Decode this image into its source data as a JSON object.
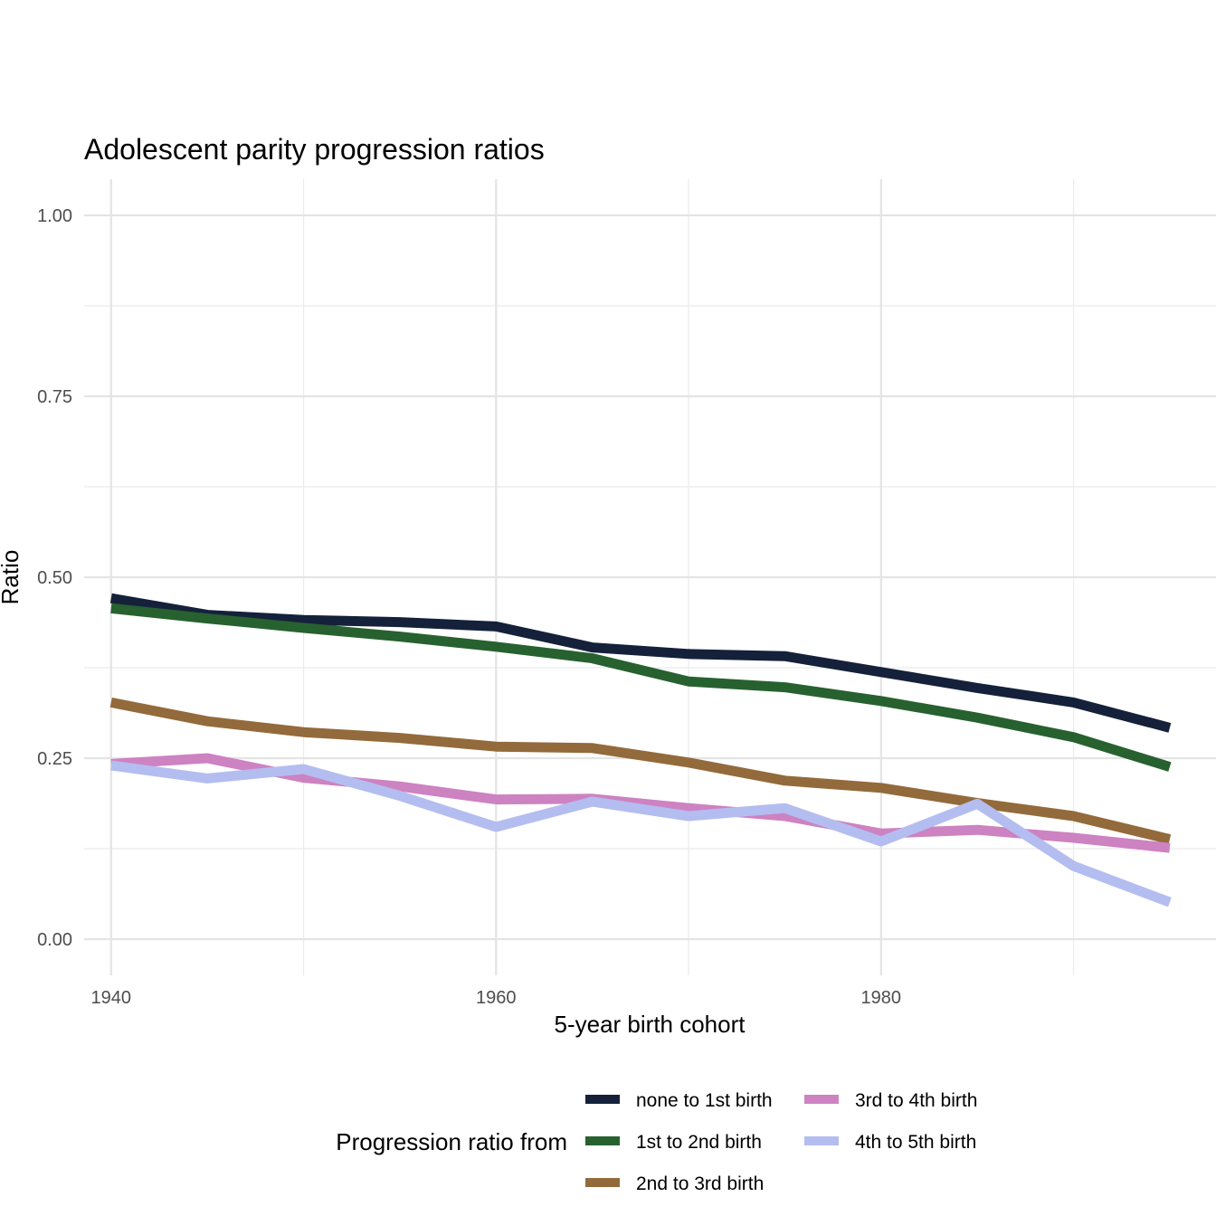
{
  "chart_data": {
    "type": "line",
    "title": "Adolescent parity progression ratios",
    "xlabel": "5-year birth cohort",
    "ylabel": "Ratio",
    "xlim": [
      1938.6,
      1997.4
    ],
    "ylim": [
      -0.05,
      1.05
    ],
    "x_ticks": [
      1940,
      1960,
      1980
    ],
    "x_tick_labels": [
      "1940",
      "1960",
      "1980"
    ],
    "x_minor_ticks": [
      1950,
      1970,
      1990
    ],
    "y_ticks": [
      0,
      0.25,
      0.5,
      0.75,
      1.0
    ],
    "y_tick_labels": [
      "0.00",
      "0.25",
      "0.50",
      "0.75",
      "1.00"
    ],
    "y_minor_ticks": [
      0.125,
      0.375,
      0.625,
      0.875
    ],
    "grid": true,
    "legend": {
      "title": "Progression ratio from",
      "position": "bottom"
    },
    "x": [
      1940,
      1945,
      1950,
      1955,
      1960,
      1965,
      1970,
      1975,
      1980,
      1985,
      1990,
      1995
    ],
    "series": [
      {
        "name": "none to 1st birth",
        "color": "#15213a",
        "values": [
          0.471,
          0.448,
          0.441,
          0.438,
          0.432,
          0.403,
          0.394,
          0.391,
          0.369,
          0.347,
          0.327,
          0.292
        ]
      },
      {
        "name": "1st to 2nd birth",
        "color": "#27612f",
        "values": [
          0.457,
          0.443,
          0.43,
          0.418,
          0.404,
          0.388,
          0.356,
          0.348,
          0.329,
          0.306,
          0.279,
          0.238
        ]
      },
      {
        "name": "2nd to 3rd birth",
        "color": "#936a3b",
        "values": [
          0.327,
          0.301,
          0.286,
          0.278,
          0.266,
          0.264,
          0.244,
          0.219,
          0.209,
          0.188,
          0.17,
          0.138
        ]
      },
      {
        "name": "3rd to 4th birth",
        "color": "#cd82c2",
        "values": [
          0.242,
          0.25,
          0.223,
          0.211,
          0.193,
          0.194,
          0.181,
          0.17,
          0.146,
          0.151,
          0.14,
          0.126
        ]
      },
      {
        "name": "4th to 5th birth",
        "color": "#b4bdf0",
        "values": [
          0.24,
          0.222,
          0.235,
          0.198,
          0.155,
          0.19,
          0.17,
          0.181,
          0.135,
          0.187,
          0.101,
          0.051
        ]
      }
    ]
  }
}
